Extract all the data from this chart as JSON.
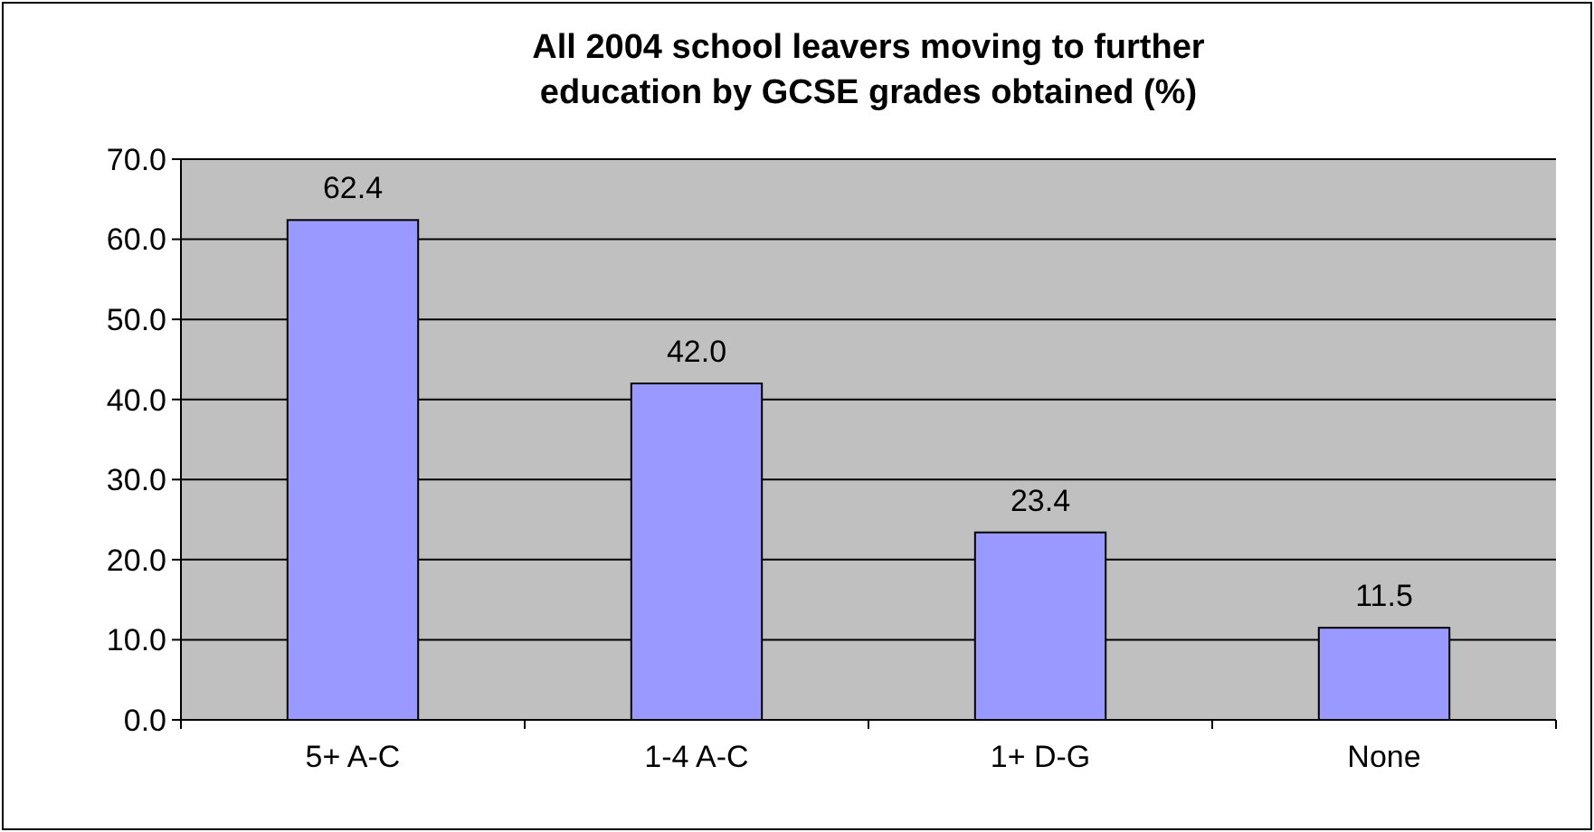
{
  "chart_data": {
    "type": "bar",
    "title": "All 2004 school leavers moving to further education by GCSE grades obtained (%)",
    "categories": [
      "5+ A-C",
      "1-4 A-C",
      "1+ D-G",
      "None"
    ],
    "values": [
      62.4,
      42.0,
      23.4,
      11.5
    ],
    "value_labels": [
      "62.4",
      "42.0",
      "23.4",
      "11.5"
    ],
    "color": "#9999ff",
    "ylim": [
      0,
      70
    ],
    "yticks": [
      {
        "value": 0,
        "label": "0.0"
      },
      {
        "value": 10,
        "label": "10.0"
      },
      {
        "value": 20,
        "label": "20.0"
      },
      {
        "value": 30,
        "label": "30.0"
      },
      {
        "value": 40,
        "label": "40.0"
      },
      {
        "value": 50,
        "label": "50.0"
      },
      {
        "value": 60,
        "label": "60.0"
      },
      {
        "value": 70,
        "label": "70.0"
      }
    ],
    "grid": "y"
  }
}
